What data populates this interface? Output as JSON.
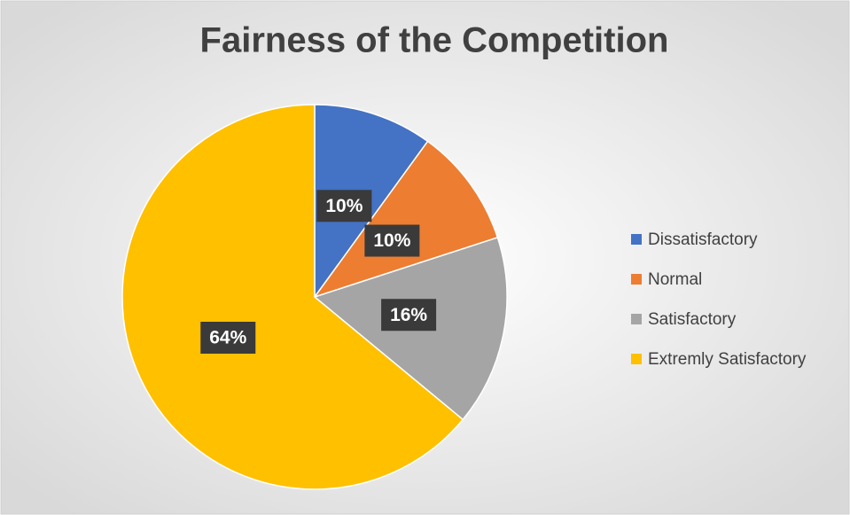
{
  "chart_data": {
    "type": "pie",
    "title": "Fairness of the Competition",
    "categories": [
      "Dissatisfactory",
      "Normal",
      "Satisfactory",
      "Extremly Satisfactory"
    ],
    "values": [
      10,
      10,
      16,
      64
    ],
    "value_labels": [
      "10%",
      "10%",
      "16%",
      "64%"
    ],
    "colors": [
      "#4472c4",
      "#ed7d31",
      "#a5a5a5",
      "#ffc000"
    ],
    "legend": "right"
  }
}
